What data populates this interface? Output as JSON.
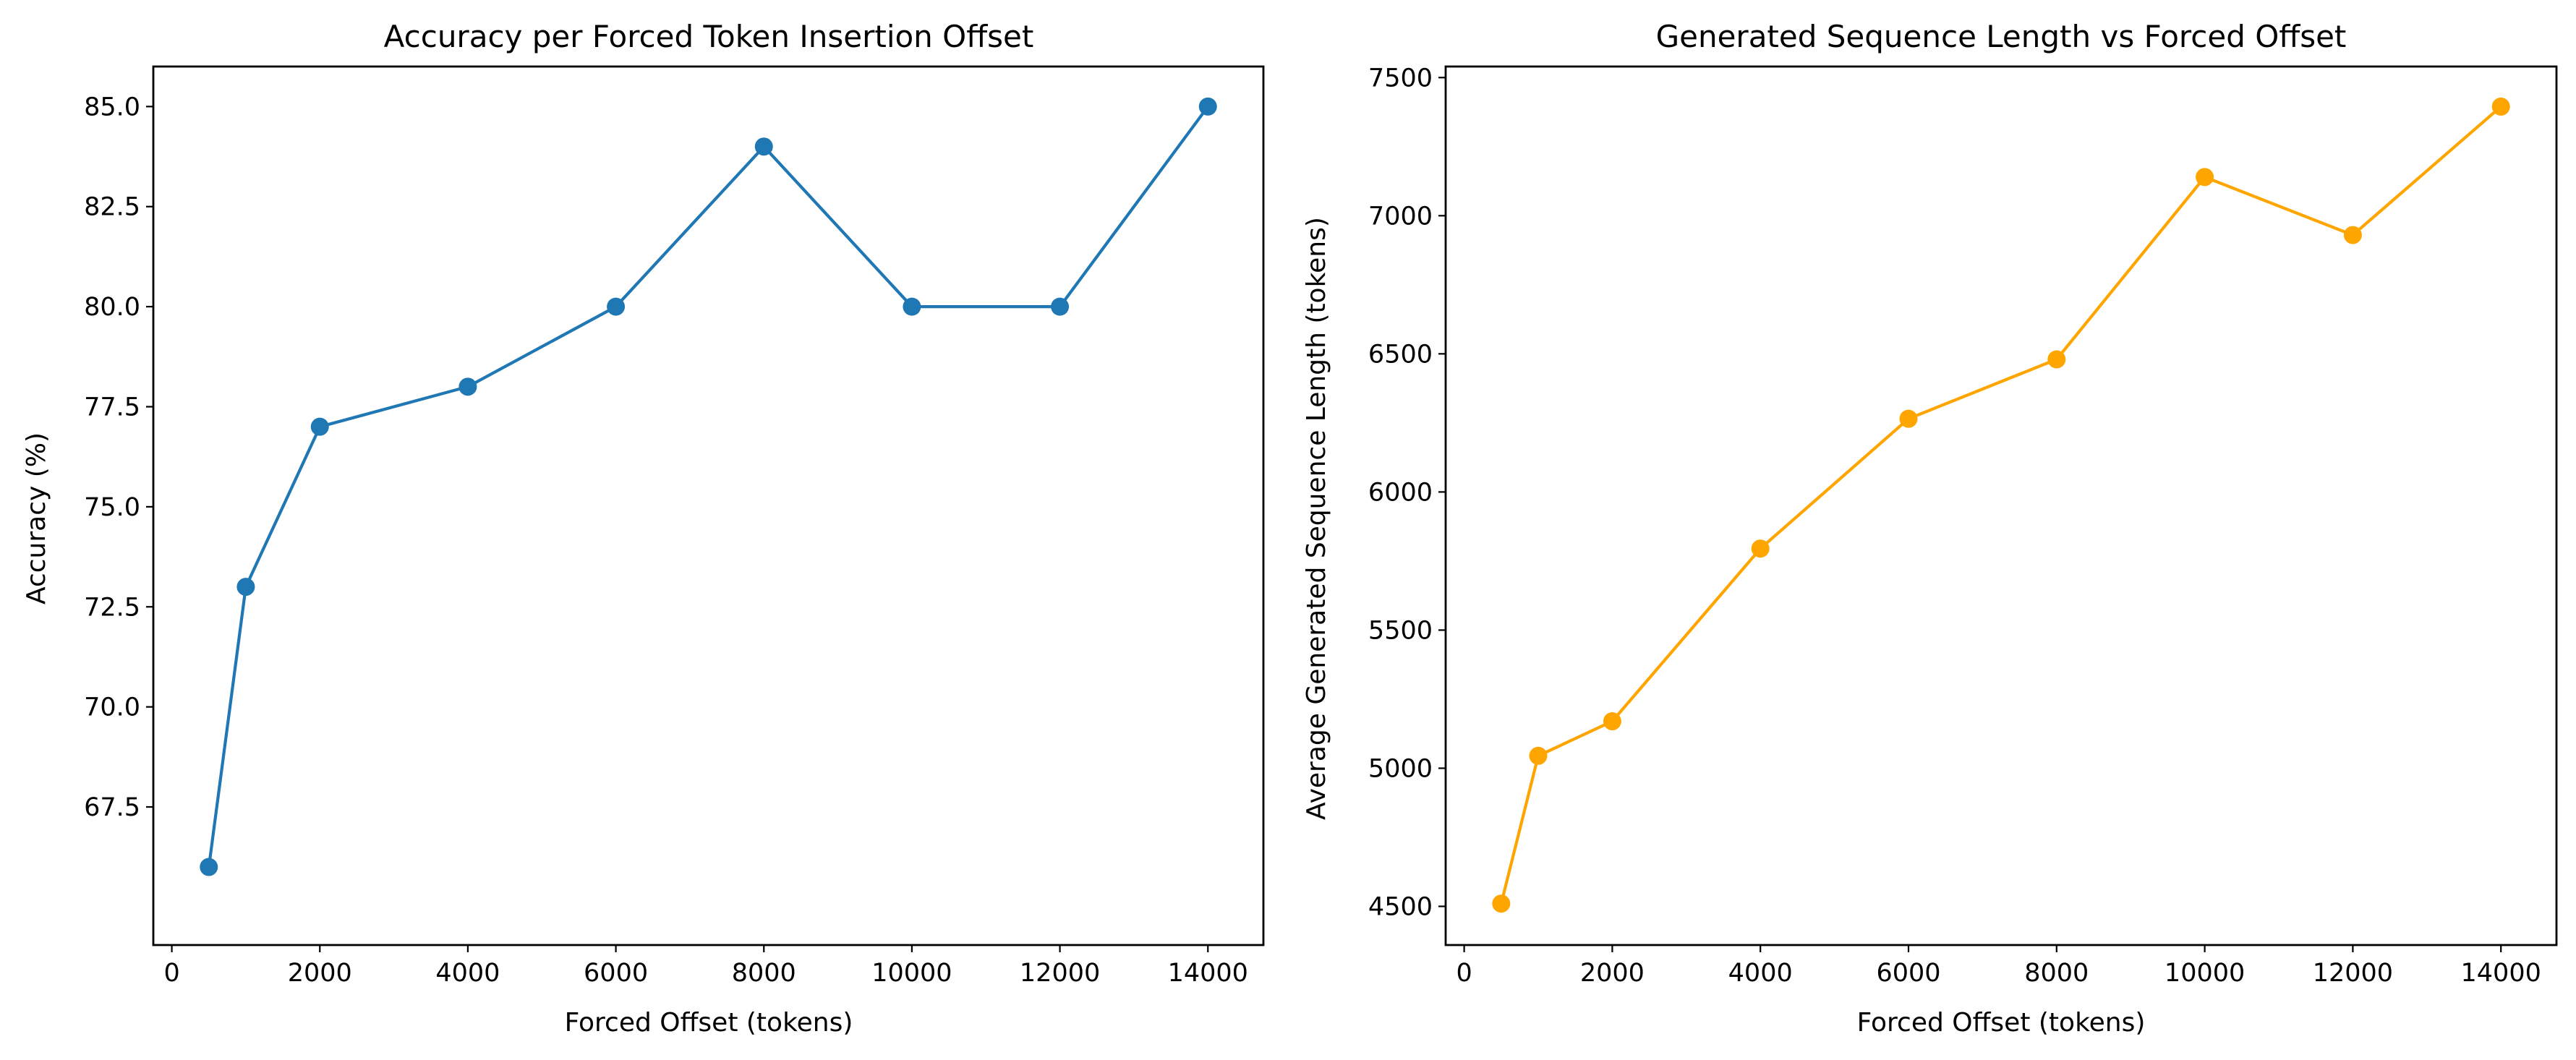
{
  "chart_data": [
    {
      "type": "line",
      "title": "Accuracy per Forced Token Insertion Offset",
      "xlabel": "Forced Offset (tokens)",
      "ylabel": "Accuracy (%)",
      "x": [
        500,
        1000,
        2000,
        4000,
        6000,
        8000,
        10000,
        12000,
        14000
      ],
      "series": [
        {
          "values": [
            66,
            73,
            77,
            78,
            80,
            84,
            80,
            80,
            85
          ],
          "color": "#1f77b4",
          "marker": "circle"
        }
      ],
      "xlim": [
        -250,
        14750
      ],
      "ylim": [
        64.05,
        86.0
      ],
      "xticks": [
        0,
        2000,
        4000,
        6000,
        8000,
        10000,
        12000,
        14000
      ],
      "xtick_labels": [
        "0",
        "2000",
        "4000",
        "6000",
        "8000",
        "10000",
        "12000",
        "14000"
      ],
      "yticks": [
        67.5,
        70.0,
        72.5,
        75.0,
        77.5,
        80.0,
        82.5,
        85.0
      ],
      "ytick_labels": [
        "67.5",
        "70.0",
        "72.5",
        "75.0",
        "77.5",
        "80.0",
        "82.5",
        "85.0"
      ],
      "grid": false,
      "legend": "none"
    },
    {
      "type": "line",
      "title": "Generated Sequence Length vs Forced Offset",
      "xlabel": "Forced Offset (tokens)",
      "ylabel": "Average Generated Sequence Length (tokens)",
      "x": [
        500,
        1000,
        2000,
        4000,
        6000,
        8000,
        10000,
        12000,
        14000
      ],
      "series": [
        {
          "values": [
            4510,
            5045,
            5170,
            5795,
            6265,
            6480,
            7140,
            6930,
            7395
          ],
          "color": "#ffa500",
          "marker": "circle"
        }
      ],
      "xlim": [
        -250,
        14750
      ],
      "ylim": [
        4360,
        7540
      ],
      "xticks": [
        0,
        2000,
        4000,
        6000,
        8000,
        10000,
        12000,
        14000
      ],
      "xtick_labels": [
        "0",
        "2000",
        "4000",
        "6000",
        "8000",
        "10000",
        "12000",
        "14000"
      ],
      "yticks": [
        4500,
        5000,
        5500,
        6000,
        6500,
        7000,
        7500
      ],
      "ytick_labels": [
        "4500",
        "5000",
        "5500",
        "6000",
        "6500",
        "7000",
        "7500"
      ],
      "grid": false,
      "legend": "none"
    }
  ]
}
